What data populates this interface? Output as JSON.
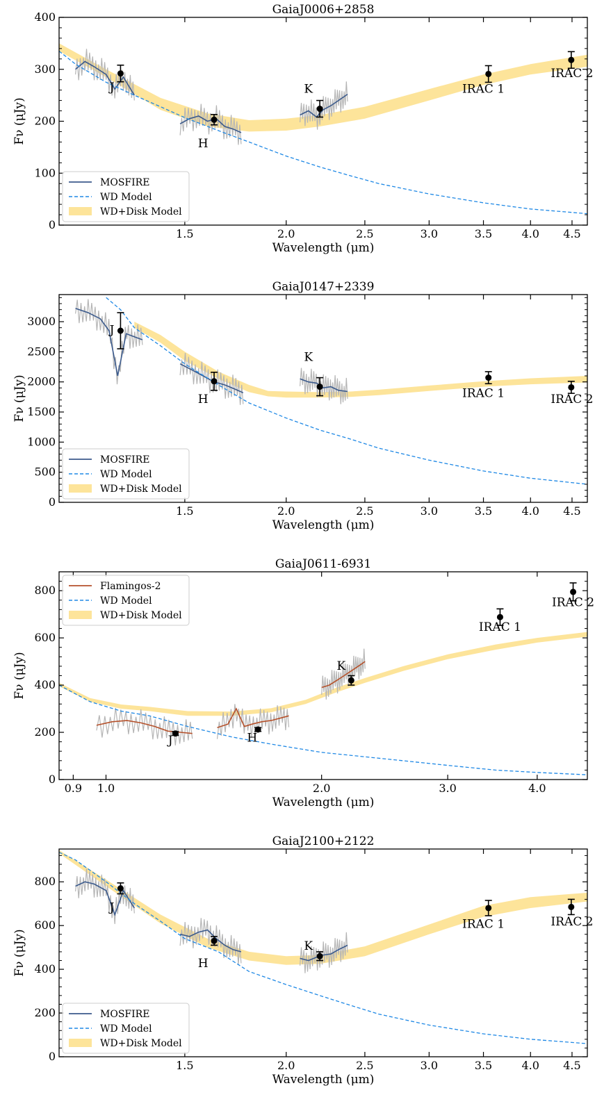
{
  "chart_data": [
    {
      "type": "line",
      "title": "GaiaJ0006+2858",
      "xlabel": "Wavelength (μm)",
      "ylabel": "Fν (μJy)",
      "xscale": "log",
      "xlim": [
        1.05,
        4.7
      ],
      "ylim": [
        0,
        400
      ],
      "xticks": [
        1.5,
        2.0,
        2.5,
        3.0,
        3.5,
        4.0,
        4.5
      ],
      "xtick_labels": [
        "1.5",
        "2.0",
        "2.5",
        "3.0",
        "3.5",
        "4.0",
        "4.5"
      ],
      "yticks": [
        0,
        100,
        200,
        300,
        400
      ],
      "ytick_labels": [
        "0",
        "100",
        "200",
        "300",
        "400"
      ],
      "legend": {
        "placement": "lower-left",
        "entries": [
          "MOSFIRE",
          "WD Model",
          "WD+Disk Model"
        ]
      },
      "colors": {
        "spectrum": "#3b5a8c",
        "wd_model": "#1e88e5",
        "disk_model": "#fde49a",
        "noise": "#b5b5b5"
      },
      "wd_model": {
        "x": [
          1.05,
          1.1,
          1.2,
          1.3,
          1.4,
          1.5,
          1.65,
          1.8,
          2.0,
          2.2,
          2.4,
          2.6,
          3.0,
          3.5,
          4.0,
          4.7
        ],
        "y": [
          335,
          310,
          275,
          250,
          228,
          207,
          182,
          160,
          133,
          112,
          95,
          80,
          60,
          43,
          31,
          22
        ]
      },
      "disk_model": {
        "x": [
          1.05,
          1.2,
          1.4,
          1.6,
          1.8,
          2.0,
          2.2,
          2.5,
          3.0,
          3.5,
          4.0,
          4.7
        ],
        "low": [
          335,
          285,
          222,
          190,
          180,
          182,
          190,
          205,
          240,
          270,
          290,
          305
        ],
        "high": [
          350,
          300,
          245,
          215,
          202,
          205,
          212,
          228,
          262,
          290,
          310,
          328
        ]
      },
      "spectrum": {
        "segments": [
          {
            "x": [
              1.1,
              1.13,
              1.16,
              1.2,
              1.23,
              1.26,
              1.3
            ],
            "y": [
              300,
              315,
              305,
              290,
              262,
              285,
              250
            ]
          },
          {
            "x": [
              1.48,
              1.52,
              1.56,
              1.6,
              1.64,
              1.68,
              1.72,
              1.76
            ],
            "y": [
              195,
              205,
              210,
              200,
              205,
              190,
              185,
              178
            ]
          },
          {
            "x": [
              2.08,
              2.13,
              2.18,
              2.22,
              2.27,
              2.32,
              2.38
            ],
            "y": [
              212,
              220,
              208,
              222,
              230,
              240,
              252
            ]
          }
        ]
      },
      "points": {
        "x": [
          1.25,
          1.63,
          2.2,
          3.55,
          4.49
        ],
        "y": [
          292,
          203,
          224,
          291,
          318
        ],
        "yerr": [
          16,
          10,
          16,
          16,
          16
        ]
      },
      "annotations": [
        {
          "text": "J",
          "x": 1.22,
          "y": 258
        },
        {
          "text": "H",
          "x": 1.58,
          "y": 150
        },
        {
          "text": "K",
          "x": 2.13,
          "y": 255
        },
        {
          "text": "IRAC 1",
          "x": 3.5,
          "y": 255
        },
        {
          "text": "IRAC 2",
          "x": 4.5,
          "y": 285
        }
      ]
    },
    {
      "type": "line",
      "title": "GaiaJ0147+2339",
      "xlabel": "Wavelength (μm)",
      "ylabel": "Fν (μJy)",
      "xscale": "log",
      "xlim": [
        1.05,
        4.7
      ],
      "ylim": [
        0,
        3450
      ],
      "xticks": [
        1.5,
        2.0,
        2.5,
        3.0,
        3.5,
        4.0,
        4.5
      ],
      "xtick_labels": [
        "1.5",
        "2.0",
        "2.5",
        "3.0",
        "3.5",
        "4.0",
        "4.5"
      ],
      "yticks": [
        0,
        500,
        1000,
        1500,
        2000,
        2500,
        3000
      ],
      "ytick_labels": [
        "0",
        "500",
        "1000",
        "1500",
        "2000",
        "2500",
        "3000"
      ],
      "legend": {
        "placement": "lower-left",
        "entries": [
          "MOSFIRE",
          "WD Model",
          "WD+Disk Model"
        ]
      },
      "colors": {
        "spectrum": "#3b5a8c",
        "wd_model": "#1e88e5",
        "disk_model": "#fde49a",
        "noise": "#b5b5b5"
      },
      "wd_model": {
        "x": [
          1.2,
          1.25,
          1.3,
          1.4,
          1.5,
          1.65,
          1.8,
          2.0,
          2.2,
          2.4,
          2.6,
          3.0,
          3.5,
          4.0,
          4.7
        ],
        "y": [
          3400,
          3200,
          2900,
          2600,
          2300,
          1950,
          1650,
          1400,
          1200,
          1050,
          900,
          700,
          520,
          400,
          300
        ]
      },
      "disk_model": {
        "x": [
          1.3,
          1.4,
          1.5,
          1.65,
          1.8,
          1.9,
          2.0,
          2.2,
          2.4,
          2.6,
          3.0,
          3.5,
          4.0,
          4.7
        ],
        "low": [
          2900,
          2650,
          2350,
          2050,
          1830,
          1760,
          1740,
          1740,
          1750,
          1780,
          1850,
          1920,
          1960,
          1990
        ],
        "high": [
          3000,
          2780,
          2500,
          2170,
          1950,
          1850,
          1840,
          1830,
          1840,
          1870,
          1940,
          2010,
          2060,
          2100
        ]
      },
      "spectrum": {
        "segments": [
          {
            "x": [
              1.1,
              1.14,
              1.18,
              1.21,
              1.24,
              1.27,
              1.3,
              1.33
            ],
            "y": [
              3220,
              3150,
              3050,
              2850,
              2100,
              2800,
              2750,
              2700
            ]
          },
          {
            "x": [
              1.48,
              1.53,
              1.58,
              1.63,
              1.68,
              1.73,
              1.77
            ],
            "y": [
              2300,
              2200,
              2100,
              2000,
              1950,
              1880,
              1820
            ]
          },
          {
            "x": [
              2.08,
              2.13,
              2.18,
              2.22,
              2.27,
              2.32,
              2.38
            ],
            "y": [
              2050,
              2000,
              1980,
              1900,
              1920,
              1860,
              1840
            ]
          }
        ]
      },
      "points": {
        "x": [
          1.25,
          1.63,
          2.2,
          3.55,
          4.49
        ],
        "y": [
          2850,
          2010,
          1920,
          2070,
          1910
        ],
        "yerr": [
          300,
          150,
          150,
          100,
          100
        ]
      },
      "annotations": [
        {
          "text": "J",
          "x": 1.22,
          "y": 2800
        },
        {
          "text": "H",
          "x": 1.58,
          "y": 1650
        },
        {
          "text": "K",
          "x": 2.13,
          "y": 2350
        },
        {
          "text": "IRAC 1",
          "x": 3.5,
          "y": 1750
        },
        {
          "text": "IRAC 2",
          "x": 4.5,
          "y": 1650
        }
      ]
    },
    {
      "type": "line",
      "title": "GaiaJ0611-6931",
      "xlabel": "Wavelength (μm)",
      "ylabel": "Fν (μJy)",
      "xscale": "log",
      "xlim": [
        0.86,
        4.7
      ],
      "ylim": [
        0,
        880
      ],
      "xticks": [
        0.9,
        1.0,
        2.0,
        3.0,
        4.0
      ],
      "xtick_labels": [
        "0.9",
        "1.0",
        "2.0",
        "3.0",
        "4.0"
      ],
      "yticks": [
        0,
        200,
        400,
        600,
        800
      ],
      "ytick_labels": [
        "0",
        "200",
        "400",
        "600",
        "800"
      ],
      "legend": {
        "placement": "top-left",
        "entries": [
          "Flamingos-2",
          "WD Model",
          "WD+Disk Model"
        ]
      },
      "colors": {
        "spectrum": "#b5512b",
        "wd_model": "#1e88e5",
        "disk_model": "#fde49a",
        "noise": "#b5b5b5"
      },
      "wd_model": {
        "x": [
          0.86,
          0.95,
          1.05,
          1.15,
          1.3,
          1.5,
          1.7,
          2.0,
          2.5,
          3.0,
          3.5,
          4.0,
          4.7
        ],
        "y": [
          400,
          330,
          290,
          270,
          225,
          180,
          150,
          115,
          85,
          60,
          40,
          30,
          20
        ]
      },
      "disk_model": {
        "x": [
          0.86,
          0.95,
          1.05,
          1.15,
          1.3,
          1.5,
          1.7,
          1.9,
          2.1,
          2.3,
          2.6,
          3.0,
          3.5,
          4.0,
          4.7
        ],
        "low": [
          395,
          330,
          300,
          290,
          270,
          270,
          285,
          320,
          370,
          410,
          460,
          510,
          550,
          580,
          605
        ],
        "high": [
          410,
          345,
          318,
          308,
          290,
          288,
          302,
          338,
          390,
          430,
          480,
          530,
          572,
          600,
          625
        ]
      },
      "spectrum": {
        "segments": [
          {
            "x": [
              0.97,
              1.02,
              1.07,
              1.12,
              1.17,
              1.22,
              1.27,
              1.32
            ],
            "y": [
              230,
              245,
              250,
              240,
              225,
              205,
              200,
              195
            ]
          },
          {
            "x": [
              1.43,
              1.48,
              1.52,
              1.56,
              1.6,
              1.65,
              1.7,
              1.75,
              1.8
            ],
            "y": [
              220,
              235,
              300,
              225,
              235,
              245,
              250,
              260,
              270
            ]
          },
          {
            "x": [
              2.0,
              2.05,
              2.1,
              2.15,
              2.2,
              2.25,
              2.3
            ],
            "y": [
              390,
              400,
              420,
              440,
              460,
              480,
              500
            ]
          }
        ]
      },
      "points": {
        "x": [
          1.25,
          1.63,
          2.2,
          3.55,
          4.49
        ],
        "y": [
          195,
          212,
          420,
          688,
          795
        ],
        "yerr": [
          8,
          8,
          20,
          35,
          38
        ]
      },
      "annotations": [
        {
          "text": "J",
          "x": 1.23,
          "y": 150
        },
        {
          "text": "H",
          "x": 1.6,
          "y": 160
        },
        {
          "text": "K",
          "x": 2.13,
          "y": 465
        },
        {
          "text": "IRAC 1",
          "x": 3.55,
          "y": 630
        },
        {
          "text": "IRAC 2",
          "x": 4.49,
          "y": 735
        }
      ]
    },
    {
      "type": "line",
      "title": "GaiaJ2100+2122",
      "xlabel": "Wavelength (μm)",
      "ylabel": "Fν (μJy)",
      "xscale": "log",
      "xlim": [
        1.05,
        4.7
      ],
      "ylim": [
        0,
        950
      ],
      "xticks": [
        1.5,
        2.0,
        2.5,
        3.0,
        3.5,
        4.0,
        4.5
      ],
      "xtick_labels": [
        "1.5",
        "2.0",
        "2.5",
        "3.0",
        "3.5",
        "4.0",
        "4.5"
      ],
      "yticks": [
        0,
        200,
        400,
        600,
        800
      ],
      "ytick_labels": [
        "0",
        "200",
        "400",
        "600",
        "800"
      ],
      "legend": {
        "placement": "lower-left",
        "entries": [
          "MOSFIRE",
          "WD Model",
          "WD+Disk Model"
        ]
      },
      "colors": {
        "spectrum": "#3b5a8c",
        "wd_model": "#1e88e5",
        "disk_model": "#fde49a",
        "noise": "#b5b5b5"
      },
      "wd_model": {
        "x": [
          1.05,
          1.1,
          1.2,
          1.3,
          1.4,
          1.5,
          1.65,
          1.8,
          2.0,
          2.2,
          2.4,
          2.6,
          3.0,
          3.5,
          4.0,
          4.7
        ],
        "y": [
          935,
          900,
          800,
          700,
          620,
          540,
          480,
          390,
          330,
          280,
          235,
          195,
          145,
          105,
          80,
          60
        ]
      },
      "disk_model": {
        "x": [
          1.05,
          1.2,
          1.4,
          1.6,
          1.8,
          2.0,
          2.2,
          2.5,
          3.0,
          3.5,
          4.0,
          4.7
        ],
        "low": [
          930,
          780,
          610,
          500,
          440,
          420,
          425,
          460,
          560,
          640,
          680,
          710
        ],
        "high": [
          945,
          810,
          650,
          540,
          480,
          460,
          465,
          505,
          605,
          690,
          730,
          750
        ]
      },
      "spectrum": {
        "segments": [
          {
            "x": [
              1.1,
              1.13,
              1.16,
              1.2,
              1.23,
              1.26,
              1.3
            ],
            "y": [
              780,
              800,
              790,
              760,
              650,
              760,
              680
            ]
          },
          {
            "x": [
              1.48,
              1.52,
              1.56,
              1.6,
              1.64,
              1.68,
              1.72,
              1.76
            ],
            "y": [
              560,
              550,
              570,
              580,
              540,
              510,
              490,
              480
            ]
          },
          {
            "x": [
              2.08,
              2.13,
              2.18,
              2.22,
              2.27,
              2.32,
              2.38
            ],
            "y": [
              450,
              440,
              455,
              465,
              470,
              490,
              510
            ]
          }
        ]
      },
      "points": {
        "x": [
          1.25,
          1.63,
          2.2,
          3.55,
          4.49
        ],
        "y": [
          770,
          530,
          460,
          680,
          685
        ],
        "yerr": [
          25,
          20,
          20,
          35,
          35
        ]
      },
      "annotations": [
        {
          "text": "J",
          "x": 1.22,
          "y": 665
        },
        {
          "text": "H",
          "x": 1.58,
          "y": 410
        },
        {
          "text": "K",
          "x": 2.13,
          "y": 490
        },
        {
          "text": "IRAC 1",
          "x": 3.5,
          "y": 590
        },
        {
          "text": "IRAC 2",
          "x": 4.5,
          "y": 600
        }
      ]
    }
  ]
}
